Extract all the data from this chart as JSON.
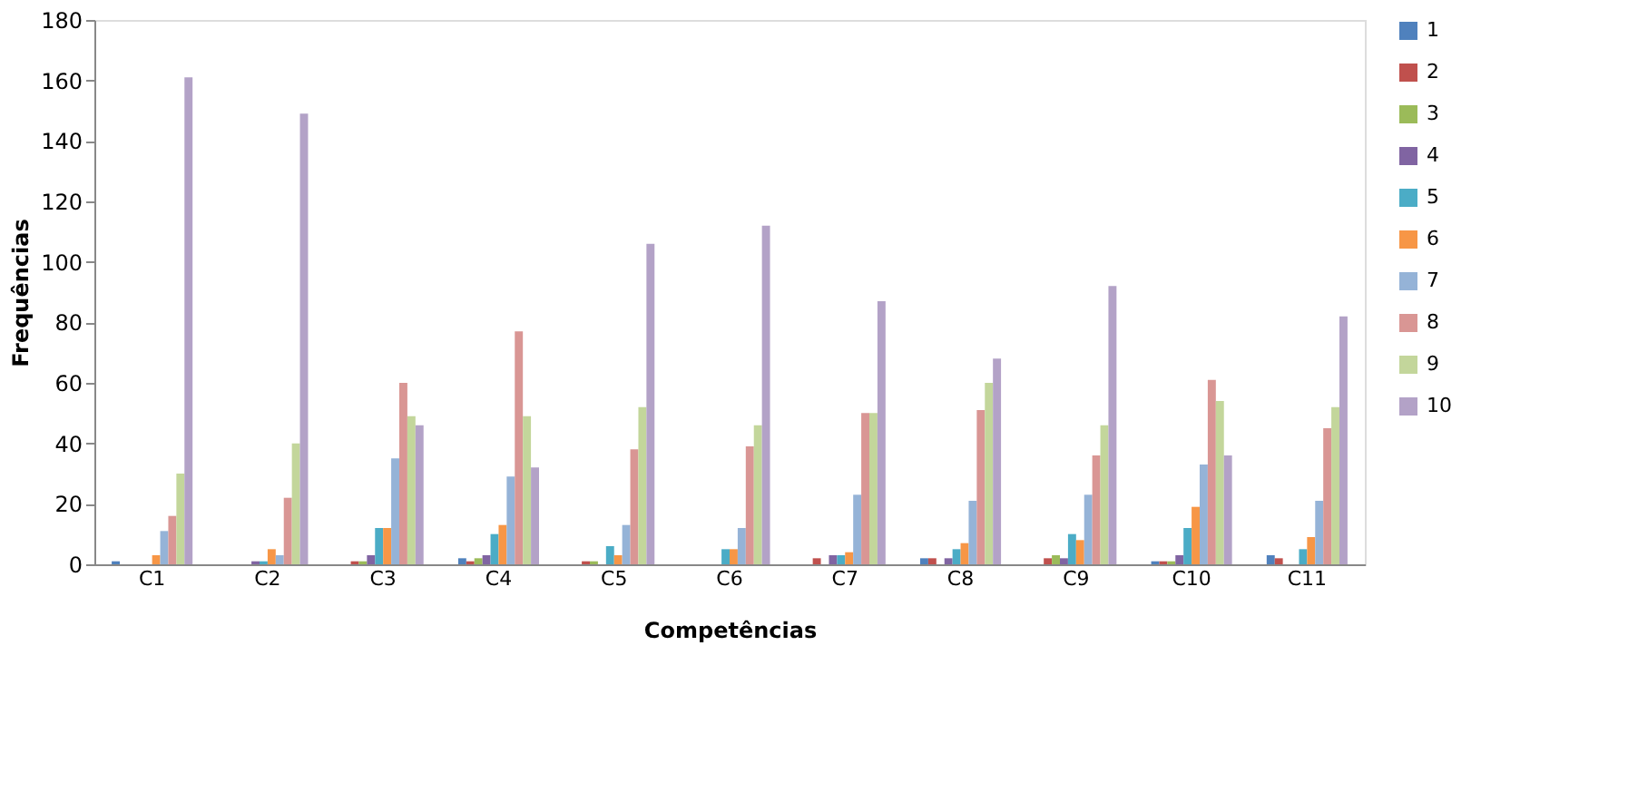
{
  "chart_data": {
    "type": "bar",
    "xlabel": "Competências",
    "ylabel": "Frequências",
    "categories": [
      "C1",
      "C2",
      "C3",
      "C4",
      "C5",
      "C6",
      "C7",
      "C8",
      "C9",
      "C10",
      "C11"
    ],
    "series": [
      {
        "name": "1",
        "color": "#4f81bd",
        "values": [
          1,
          0,
          0,
          2,
          0,
          0,
          0,
          2,
          0,
          1,
          3
        ]
      },
      {
        "name": "2",
        "color": "#c0504d",
        "values": [
          0,
          0,
          1,
          1,
          1,
          0,
          2,
          2,
          2,
          1,
          2
        ]
      },
      {
        "name": "3",
        "color": "#9bbb59",
        "values": [
          0,
          0,
          1,
          2,
          1,
          0,
          0,
          0,
          3,
          1,
          0
        ]
      },
      {
        "name": "4",
        "color": "#8064a2",
        "values": [
          0,
          1,
          3,
          3,
          0,
          0,
          3,
          2,
          2,
          3,
          0
        ]
      },
      {
        "name": "5",
        "color": "#4bacc6",
        "values": [
          0,
          1,
          12,
          10,
          6,
          5,
          3,
          5,
          10,
          12,
          5
        ]
      },
      {
        "name": "6",
        "color": "#f79646",
        "values": [
          3,
          5,
          12,
          13,
          3,
          5,
          4,
          7,
          8,
          19,
          9
        ]
      },
      {
        "name": "7",
        "color": "#95b3d7",
        "values": [
          11,
          3,
          35,
          29,
          13,
          12,
          23,
          21,
          23,
          33,
          21
        ]
      },
      {
        "name": "8",
        "color": "#d99694",
        "values": [
          16,
          22,
          60,
          77,
          38,
          39,
          50,
          51,
          36,
          61,
          45
        ]
      },
      {
        "name": "9",
        "color": "#c3d69b",
        "values": [
          30,
          40,
          49,
          49,
          52,
          46,
          50,
          60,
          46,
          54,
          52
        ]
      },
      {
        "name": "10",
        "color": "#b3a2c7",
        "values": [
          161,
          149,
          46,
          32,
          106,
          112,
          87,
          68,
          92,
          36,
          82
        ]
      }
    ],
    "ylim": [
      0,
      180
    ],
    "yticks": [
      0,
      20,
      40,
      60,
      80,
      100,
      120,
      140,
      160,
      180
    ],
    "grid": false,
    "legend": "right"
  }
}
